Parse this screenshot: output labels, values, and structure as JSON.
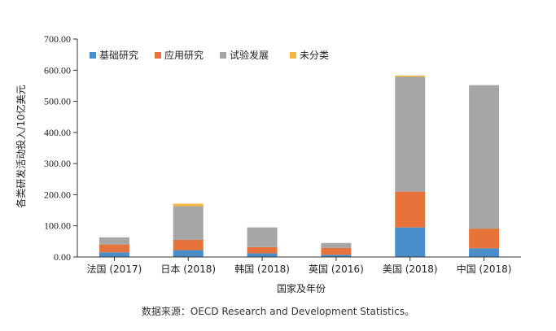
{
  "chart_data": {
    "type": "bar",
    "stacked": true,
    "categories": [
      "法国 (2017)",
      "日本 (2018)",
      "韩国 (2018)",
      "英国 (2016)",
      "美国 (2018)",
      "中国 (2018)"
    ],
    "series": [
      {
        "name": "基础研究",
        "color": "#4a8fcb",
        "values": [
          15,
          22,
          12,
          7,
          95,
          28
        ]
      },
      {
        "name": "应用研究",
        "color": "#e8733a",
        "values": [
          25,
          33,
          20,
          22,
          115,
          63
        ]
      },
      {
        "name": "试验发展",
        "color": "#a6a6a6",
        "values": [
          23,
          108,
          63,
          16,
          369,
          461
        ]
      },
      {
        "name": "未分类",
        "color": "#f3b63c",
        "values": [
          0,
          8,
          0,
          0,
          4,
          0
        ]
      }
    ],
    "xlabel": "国家及年份",
    "ylabel": "各类研发活动投入/10亿美元",
    "ylim": [
      0,
      700
    ],
    "yticks": [
      "0.00",
      "100.00",
      "200.00",
      "300.00",
      "400.00",
      "500.00",
      "600.00",
      "700.00"
    ],
    "legend_position": "top-left",
    "grid": false
  },
  "source_note": "数据来源：OECD Research and Development Statistics。"
}
